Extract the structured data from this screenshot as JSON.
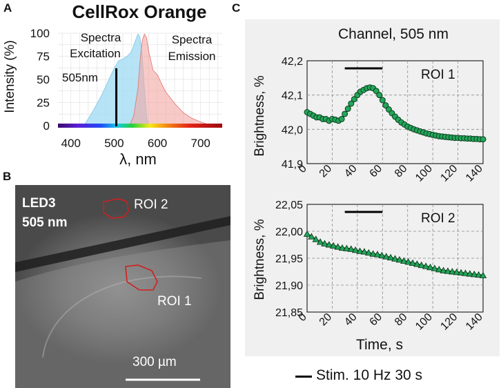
{
  "panel_a": {
    "letter": "A",
    "title": "CellRox Orange",
    "ylabel": "Intensity (%)",
    "xlabel": "λ, nm",
    "label_excitation_1": "Spectra",
    "label_excitation_2": "Excitation",
    "label_emission_1": "Spectra",
    "label_emission_2": "Emission",
    "marker_label": "505nm",
    "marker_value": 505,
    "x_ticks": [
      "400",
      "500",
      "600",
      "700"
    ],
    "x_tick_values": [
      400,
      500,
      600,
      700
    ],
    "y_ticks": [
      "0",
      "25",
      "50",
      "75",
      "100"
    ],
    "y_tick_values": [
      0,
      25,
      50,
      75,
      100
    ],
    "xlim": [
      370,
      750
    ],
    "ylim": [
      0,
      100
    ],
    "excitation_color": "#a9def3",
    "emission_color": "#f2a6a3",
    "chart_data_ref": "chart_data.0"
  },
  "panel_b": {
    "letter": "B",
    "led_label": "LED3",
    "wavelength_label": "505 nm",
    "roi2_label": "ROI 2",
    "roi1_label": "ROI 1",
    "scale_label": "300 µm",
    "roi_color": "#d11f1f"
  },
  "panel_c": {
    "letter": "C",
    "title": "Channel, 505 nm",
    "xlabel": "Time, s",
    "ylabel_top": "Brightness, %",
    "ylabel_bottom": "Brightness, %",
    "roi1_label": "ROI 1",
    "roi2_label": "ROI 2",
    "legend_label": "Stim. 10 Hz 30 s",
    "background": "#f0f0f0",
    "marker_fill": "#22a65a"
  },
  "chart_data": [
    {
      "type": "area",
      "title": "CellRox Orange",
      "xlabel": "λ, nm",
      "ylabel": "Intensity (%)",
      "xlim": [
        370,
        750
      ],
      "ylim": [
        0,
        100
      ],
      "series": [
        {
          "name": "Spectra Excitation",
          "x": [
            430,
            450,
            470,
            490,
            500,
            510,
            520,
            530,
            540,
            550,
            555,
            560,
            565,
            570,
            575,
            580
          ],
          "values": [
            0,
            15,
            32,
            52,
            62,
            70,
            72,
            75,
            80,
            93,
            99,
            95,
            75,
            40,
            10,
            0
          ]
        },
        {
          "name": "Spectra Emission",
          "x": [
            535,
            545,
            555,
            560,
            565,
            570,
            575,
            580,
            590,
            600,
            610,
            620,
            640,
            660,
            680,
            700,
            720
          ],
          "values": [
            0,
            10,
            40,
            70,
            92,
            99,
            95,
            80,
            60,
            55,
            45,
            36,
            24,
            14,
            8,
            4,
            1
          ]
        }
      ],
      "annotations": [
        {
          "x": 505,
          "label": "505nm"
        }
      ]
    },
    {
      "type": "scatter",
      "title": "ROI 1",
      "xlabel": "Time, s",
      "ylabel": "Brightness, %",
      "xlim": [
        0,
        140
      ],
      "ylim": [
        41.9,
        42.2
      ],
      "x_ticks": [
        "0",
        "20",
        "40",
        "60",
        "80",
        "100",
        "120",
        "140"
      ],
      "y_ticks": [
        "41,9",
        "42,0",
        "42,1",
        "42,2"
      ],
      "stimulus": [
        30,
        60
      ],
      "x": [
        0,
        2.5,
        5,
        7.5,
        10,
        12.5,
        15,
        17.5,
        20,
        22.5,
        25,
        27.5,
        30,
        32.5,
        35,
        37.5,
        40,
        42.5,
        45,
        47.5,
        50,
        52.5,
        55,
        57.5,
        60,
        62.5,
        65,
        67.5,
        70,
        72.5,
        75,
        77.5,
        80,
        82.5,
        85,
        87.5,
        90,
        92.5,
        95,
        97.5,
        100,
        102.5,
        105,
        107.5,
        110,
        112.5,
        115,
        117.5,
        120,
        122.5,
        125,
        127.5,
        130,
        132.5,
        135,
        137.5,
        140
      ],
      "values": [
        42.05,
        42.045,
        42.04,
        42.035,
        42.035,
        42.03,
        42.03,
        42.025,
        42.03,
        42.028,
        42.025,
        42.03,
        42.045,
        42.06,
        42.075,
        42.088,
        42.1,
        42.11,
        42.115,
        42.12,
        42.122,
        42.12,
        42.112,
        42.1,
        42.085,
        42.07,
        42.058,
        42.047,
        42.037,
        42.028,
        42.02,
        42.014,
        42.008,
        42.004,
        42.0,
        41.997,
        41.994,
        41.991,
        41.988,
        41.986,
        41.984,
        41.982,
        41.98,
        41.979,
        41.978,
        41.977,
        41.976,
        41.975,
        41.975,
        41.974,
        41.974,
        41.973,
        41.973,
        41.972,
        41.972,
        41.971,
        41.971
      ]
    },
    {
      "type": "scatter",
      "title": "ROI 2",
      "xlabel": "Time, s",
      "ylabel": "Brightness, %",
      "xlim": [
        0,
        140
      ],
      "ylim": [
        21.85,
        22.05
      ],
      "x_ticks": [
        "0",
        "20",
        "40",
        "60",
        "80",
        "100",
        "120",
        "140"
      ],
      "y_ticks": [
        "21,85",
        "21,90",
        "21,95",
        "22,00",
        "22,05"
      ],
      "stimulus": [
        30,
        60
      ],
      "x": [
        0,
        3.5,
        7,
        10.5,
        14,
        17.5,
        21,
        24.5,
        28,
        31.5,
        35,
        38.5,
        42,
        45.5,
        49,
        52.5,
        56,
        59.5,
        63,
        66.5,
        70,
        73.5,
        77,
        80.5,
        84,
        87.5,
        91,
        94.5,
        98,
        101.5,
        105,
        108.5,
        112,
        115.5,
        119,
        122.5,
        126,
        129.5,
        133,
        136.5,
        140
      ],
      "values": [
        21.995,
        21.99,
        21.985,
        21.98,
        21.977,
        21.975,
        21.973,
        21.971,
        21.969,
        21.968,
        21.967,
        21.965,
        21.963,
        21.962,
        21.96,
        21.958,
        21.957,
        21.955,
        21.953,
        21.951,
        21.949,
        21.947,
        21.945,
        21.943,
        21.941,
        21.939,
        21.937,
        21.935,
        21.933,
        21.931,
        21.929,
        21.927,
        21.926,
        21.925,
        21.924,
        21.923,
        21.922,
        21.921,
        21.92,
        21.919,
        21.918
      ]
    }
  ]
}
